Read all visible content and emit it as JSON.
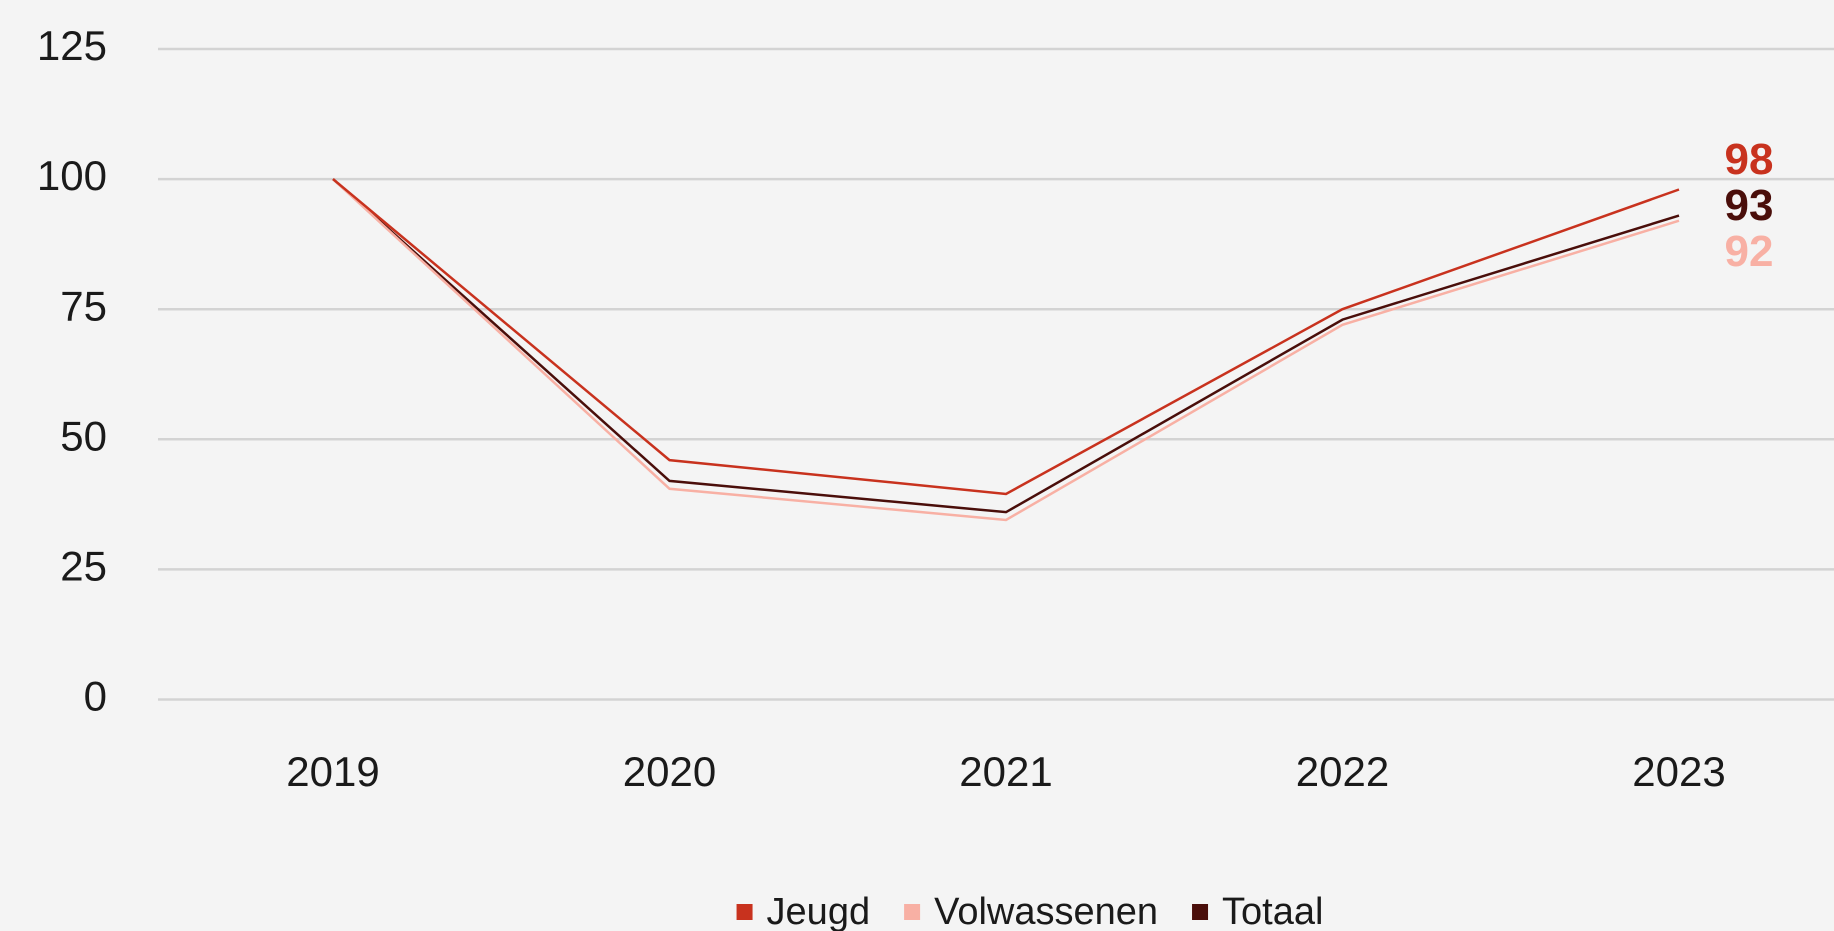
{
  "chart_data": {
    "type": "line",
    "categories": [
      "2019",
      "2020",
      "2021",
      "2022",
      "2023"
    ],
    "series": [
      {
        "name": "Jeugd",
        "color": "#c8321e",
        "values": [
          100,
          46,
          39.5,
          75,
          98
        ],
        "value_labels": [
          null,
          null,
          null,
          null,
          "98"
        ]
      },
      {
        "name": "Volwassenen",
        "color": "#f8b0a4",
        "values": [
          100,
          40.5,
          34.5,
          72,
          92
        ],
        "value_labels": [
          null,
          null,
          null,
          null,
          "92"
        ]
      },
      {
        "name": "Totaal",
        "color": "#4a0e0a",
        "values": [
          100,
          42,
          36,
          73,
          93
        ],
        "value_labels": [
          null,
          null,
          null,
          null,
          "93"
        ]
      }
    ],
    "ylim": [
      0,
      125
    ],
    "yticks": [
      0,
      25,
      50,
      75,
      100,
      125
    ],
    "grid": true,
    "legend": "bottom"
  }
}
